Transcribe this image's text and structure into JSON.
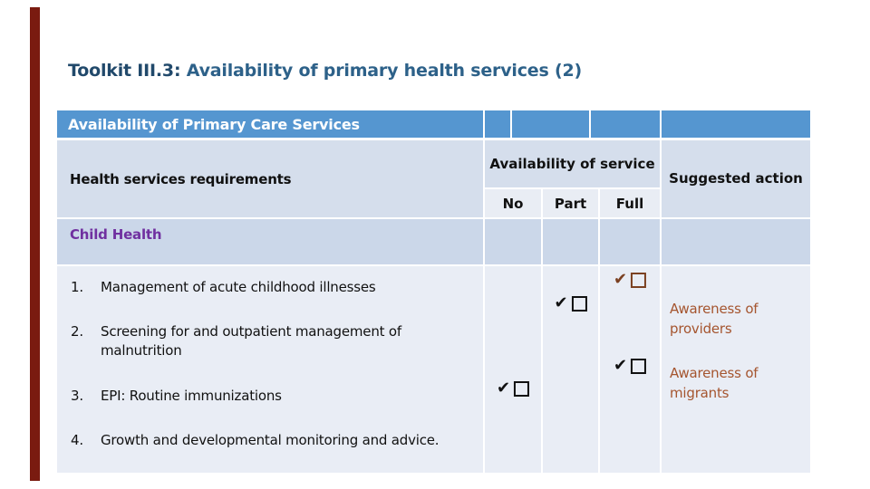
{
  "slide": {
    "title": {
      "prefix": "Toolkit III.3:",
      "rest": " Availability of primary health services (2)"
    }
  },
  "table": {
    "banner": "Availability of Primary Care Services",
    "header": {
      "col1": "Health services requirements",
      "availability_group": "Availability of service",
      "sub_columns": {
        "no": "No",
        "part": "Part",
        "full": "Full"
      },
      "suggested": "Suggested action"
    },
    "section": "Child Health",
    "rows": [
      {
        "num": "1.",
        "text": "Management of acute childhood illnesses"
      },
      {
        "num": "2.",
        "text": "Screening for and outpatient management of malnutrition"
      },
      {
        "num": "3.",
        "text": "EPI: Routine immunizations"
      },
      {
        "num": "4.",
        "text": "Growth and developmental monitoring and advice."
      }
    ],
    "checks": {
      "glyph": "✔",
      "items": [
        {
          "column": "Full",
          "near_row": "1",
          "color": "#7b4122"
        },
        {
          "column": "Part",
          "near_row": "2",
          "color": "#111111"
        },
        {
          "column": "Full",
          "near_row": "3",
          "color": "#111111"
        },
        {
          "column": "No",
          "near_row": "3",
          "color": "#111111"
        }
      ]
    },
    "actions": {
      "providers": "Awareness of providers",
      "migrants": "Awareness of migrants"
    }
  },
  "colors": {
    "accent_bar": "#7a1b10",
    "banner_blue": "#5596d0",
    "header_band": "#d5deec",
    "sub_cell": "#e9edf4",
    "section_row": "#cbd7e9",
    "body_row": "#e9edf5",
    "section_purple": "#7030a0",
    "action_brown": "#a5552f",
    "check_brown": "#7b4122",
    "title_prefix": "#21496b",
    "title_rest": "#2d6189"
  }
}
